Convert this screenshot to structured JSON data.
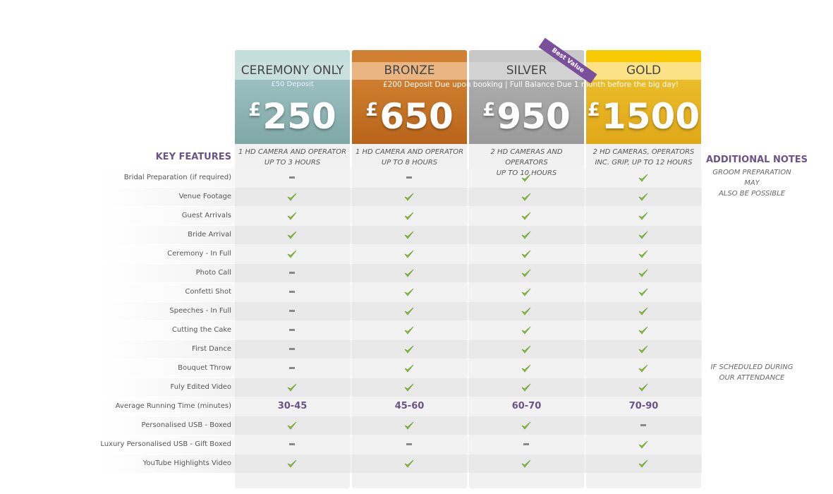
{
  "key_features_heading": "KEY FEATURES",
  "additional_notes_heading": "ADDITIONAL NOTES",
  "badge": "Best Value",
  "deposit_note": "£200 Deposit Due upon booking | Full Balance Due 1 month before the big day!",
  "plans": [
    {
      "name": "CEREMONY ONLY",
      "deposit": "£50 Deposit",
      "currency": "£",
      "price": "250",
      "description": [
        "1 HD CAMERA AND OPERATOR",
        "UP TO 3 HOURS"
      ]
    },
    {
      "name": "BRONZE",
      "currency": "£",
      "price": "650",
      "description": [
        "1 HD CAMERA AND OPERATOR",
        "UP TO 8 HOURS"
      ]
    },
    {
      "name": "SILVER",
      "currency": "£",
      "price": "950",
      "description": [
        "2 HD CAMERAS AND OPERATORS",
        "UP TO 10 HOURS"
      ]
    },
    {
      "name": "GOLD",
      "currency": "£",
      "price": "1500",
      "description": [
        "2 HD CAMERAS, OPERATORS",
        "INC. GRIP, UP TO 12 HOURS"
      ]
    }
  ],
  "features": [
    {
      "name": "Bridal Preparation (if required)",
      "cells": [
        false,
        false,
        true,
        true
      ]
    },
    {
      "name": "Venue Footage",
      "cells": [
        true,
        true,
        true,
        true
      ]
    },
    {
      "name": "Guest Arrivals",
      "cells": [
        true,
        true,
        true,
        true
      ]
    },
    {
      "name": "Bride Arrival",
      "cells": [
        true,
        true,
        true,
        true
      ]
    },
    {
      "name": "Ceremony - In Full",
      "cells": [
        true,
        true,
        true,
        true
      ]
    },
    {
      "name": "Photo Call",
      "cells": [
        false,
        true,
        true,
        true
      ]
    },
    {
      "name": "Confetti Shot",
      "cells": [
        false,
        true,
        true,
        true
      ]
    },
    {
      "name": "Speeches - In Full",
      "cells": [
        false,
        true,
        true,
        true
      ]
    },
    {
      "name": "Cutting the Cake",
      "cells": [
        false,
        true,
        true,
        true
      ]
    },
    {
      "name": "First Dance",
      "cells": [
        false,
        true,
        true,
        true
      ]
    },
    {
      "name": "Bouquet Throw",
      "cells": [
        false,
        true,
        true,
        true
      ]
    },
    {
      "name": "Fuly Edited Video",
      "cells": [
        true,
        true,
        true,
        true
      ]
    },
    {
      "name": "Average Running Time (minutes)",
      "cells": [
        "30-45",
        "45-60",
        "60-70",
        "70-90"
      ]
    },
    {
      "name": "Personalised USB - Boxed",
      "cells": [
        true,
        true,
        true,
        false
      ]
    },
    {
      "name": "Luxury Personalised USB - Gift Boxed",
      "cells": [
        false,
        false,
        false,
        true
      ]
    },
    {
      "name": "YouTube Highlights Video",
      "cells": [
        true,
        true,
        true,
        true
      ]
    }
  ],
  "notes": [
    {
      "row": 0,
      "text": [
        "GROOM PREPARATION MAY",
        "ALSO BE POSSIBLE"
      ]
    },
    {
      "row": 10,
      "text": [
        "IF SCHEDULED DURING",
        "OUR ATTENDANCE"
      ]
    }
  ]
}
